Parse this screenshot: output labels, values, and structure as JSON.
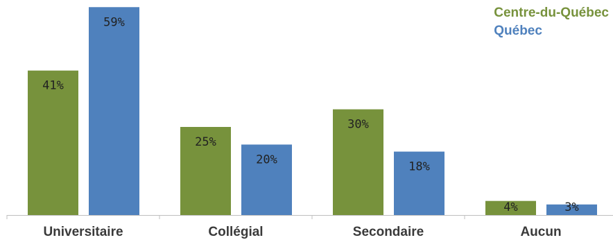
{
  "chart_data": {
    "type": "bar",
    "categories": [
      "Universitaire",
      "Collégial",
      "Secondaire",
      "Aucun"
    ],
    "series": [
      {
        "name": "Centre-du-Québec",
        "color": "#77923C",
        "values": [
          41,
          25,
          30,
          4
        ],
        "labels": [
          "41%",
          "25%",
          "30%",
          "4%"
        ]
      },
      {
        "name": "Québec",
        "color": "#4F81BD",
        "values": [
          59,
          20,
          18,
          3
        ],
        "labels": [
          "59%",
          "20%",
          "18%",
          "3%"
        ]
      }
    ],
    "ylim": [
      0,
      60
    ],
    "grid": false,
    "legend_position": "top-right"
  }
}
